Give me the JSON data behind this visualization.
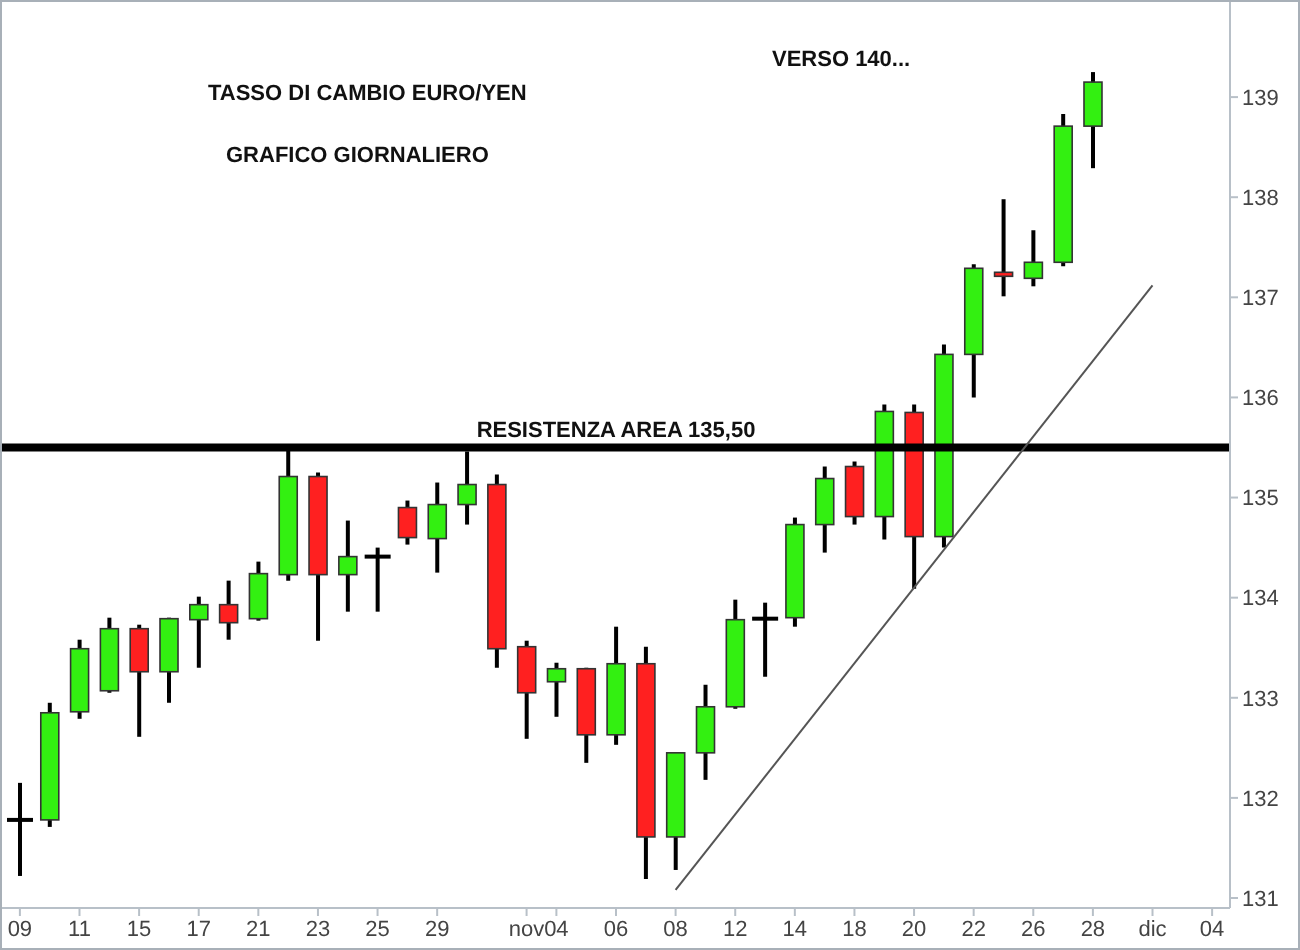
{
  "chart_data": {
    "type": "candlestick",
    "title": "TASSO DI CAMBIO EURO/YEN",
    "subtitle": "GRAFICO GIORNALIERO",
    "annotations": [
      "VERSO 140..."
    ],
    "categories": [
      "09",
      null,
      "11",
      null,
      "15",
      null,
      "17",
      null,
      "21",
      null,
      "23",
      null,
      "25",
      null,
      "29",
      null,
      null,
      "nov",
      "04",
      null,
      "06",
      null,
      "08",
      null,
      "12",
      null,
      "14",
      null,
      "18",
      null,
      "20",
      null,
      "22",
      null,
      "26",
      null,
      "28",
      null,
      "dic",
      null,
      "04"
    ],
    "ohlc": [
      [
        131.78,
        132.15,
        131.22,
        131.78
      ],
      [
        131.78,
        132.95,
        131.71,
        132.85
      ],
      [
        132.86,
        133.58,
        132.79,
        133.49
      ],
      [
        133.07,
        133.8,
        133.05,
        133.69
      ],
      [
        133.69,
        133.73,
        132.61,
        133.26
      ],
      [
        133.26,
        133.8,
        132.95,
        133.79
      ],
      [
        133.78,
        134.01,
        133.3,
        133.93
      ],
      [
        133.93,
        134.17,
        133.58,
        133.75
      ],
      [
        133.79,
        134.36,
        133.77,
        134.24
      ],
      [
        134.23,
        135.48,
        134.17,
        135.21
      ],
      [
        135.21,
        135.25,
        133.57,
        134.23
      ],
      [
        134.23,
        134.77,
        133.86,
        134.41
      ],
      [
        134.41,
        134.5,
        133.86,
        134.41
      ],
      [
        134.9,
        134.97,
        134.53,
        134.6
      ],
      [
        134.59,
        135.15,
        134.25,
        134.93
      ],
      [
        134.93,
        135.46,
        134.73,
        135.13
      ],
      [
        135.13,
        135.23,
        133.3,
        133.49
      ],
      [
        133.51,
        133.57,
        132.59,
        133.05
      ],
      [
        133.16,
        133.35,
        132.81,
        133.29
      ],
      [
        133.29,
        133.3,
        132.35,
        132.63
      ],
      [
        132.63,
        133.71,
        132.53,
        133.34
      ],
      [
        133.34,
        133.51,
        131.19,
        131.61
      ],
      [
        131.61,
        132.45,
        131.28,
        132.45
      ],
      [
        132.45,
        133.13,
        132.18,
        132.91
      ],
      [
        132.91,
        133.98,
        132.89,
        133.78
      ],
      [
        133.79,
        133.95,
        133.21,
        133.79
      ],
      [
        133.8,
        134.8,
        133.71,
        134.73
      ],
      [
        134.73,
        135.31,
        134.45,
        135.19
      ],
      [
        135.31,
        135.36,
        134.73,
        134.81
      ],
      [
        134.81,
        135.93,
        134.58,
        135.86
      ],
      [
        135.85,
        135.93,
        134.09,
        134.61
      ],
      [
        134.61,
        136.53,
        134.5,
        136.43
      ],
      [
        136.43,
        137.33,
        136.0,
        137.29
      ],
      [
        137.25,
        137.98,
        137.01,
        137.21
      ],
      [
        137.19,
        137.67,
        137.11,
        137.35
      ],
      [
        137.35,
        138.83,
        137.31,
        138.71
      ],
      [
        138.71,
        139.25,
        138.29,
        139.15
      ],
      null,
      null,
      null,
      null
    ],
    "colors": [
      "#000000",
      "#33f011",
      "#33f011",
      "#33f011",
      "#ff2020",
      "#33f011",
      "#33f011",
      "#ff2020",
      "#33f011",
      "#33f011",
      "#ff2020",
      "#33f011",
      "#000000",
      "#ff2020",
      "#33f011",
      "#33f011",
      "#ff2020",
      "#ff2020",
      "#33f011",
      "#ff2020",
      "#33f011",
      "#ff2020",
      "#33f011",
      "#33f011",
      "#33f011",
      "#000000",
      "#33f011",
      "#33f011",
      "#ff2020",
      "#33f011",
      "#ff2020",
      "#33f011",
      "#33f011",
      "#ff2020",
      "#33f011",
      "#33f011",
      "#33f011",
      null,
      null,
      null,
      null
    ],
    "series": [
      {
        "type": "line",
        "x": [
          "08",
          "dic"
        ],
        "values": [
          131.08,
          137.12
        ],
        "color": "#555555"
      }
    ],
    "ref_lines": [
      {
        "axis": "y",
        "value": 135.5,
        "label": "RESISTENZA AREA 135,50",
        "color": "#000000"
      }
    ],
    "ylim": [
      130.9,
      139.95
    ],
    "yticks": [
      131,
      132,
      133,
      134,
      135,
      136,
      137,
      138,
      139
    ]
  }
}
